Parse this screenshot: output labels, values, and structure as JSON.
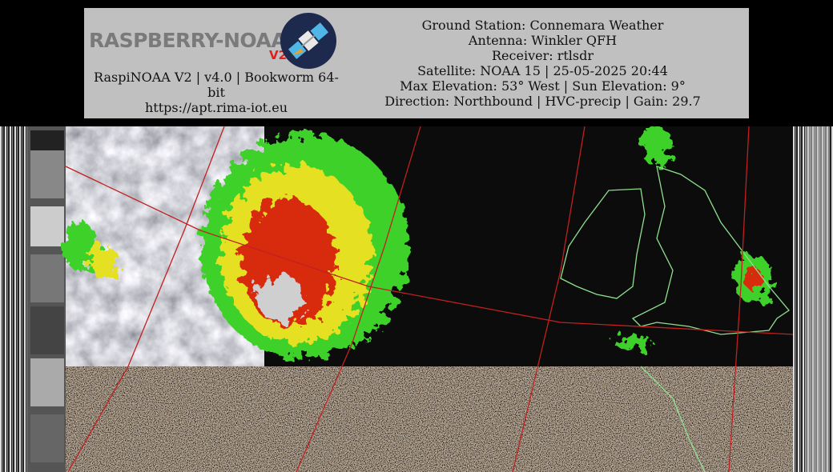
{
  "header": {
    "logo": {
      "text": "RASPBERRY-NOAA",
      "version": "V2"
    },
    "left_lines": [
      "RaspiNOAA V2 | v4.0 | Bookworm 64-bit",
      "https://apt.rima-iot.eu"
    ],
    "right_lines": [
      "Ground Station: Connemara Weather",
      "Antenna: Winkler QFH",
      "Receiver: rtlsdr",
      "Satellite: NOAA 15 | 25-05-2025 20:44",
      "Max Elevation: 53° West | Sun Elevation: 9°",
      "Direction: Northbound | HVC-precip | Gain: 29.7"
    ]
  }
}
